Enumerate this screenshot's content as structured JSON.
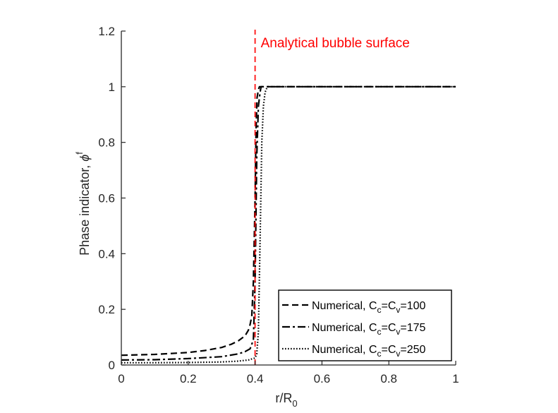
{
  "chart_data": {
    "type": "line",
    "xlabel": {
      "main": "r/R",
      "sub": "0"
    },
    "ylabel": {
      "main": "Phase indicator, ",
      "symbol": "ϕ",
      "sup": "f"
    },
    "xlim": [
      0,
      1
    ],
    "ylim": [
      0,
      1.2
    ],
    "xticks": [
      0,
      0.2,
      0.4,
      0.6,
      0.8,
      1
    ],
    "xtick_labels": [
      "0",
      "0.2",
      "0.4",
      "0.6",
      "0.8",
      "1"
    ],
    "yticks": [
      0,
      0.2,
      0.4,
      0.6,
      0.8,
      1,
      1.2
    ],
    "ytick_labels": [
      "0",
      "0.2",
      "0.4",
      "0.6",
      "0.8",
      "1",
      "1.2"
    ],
    "grid": false,
    "legend_position": "bottom-right",
    "annotation": {
      "text": "Analytical bubble surface",
      "x": 0.4,
      "color": "#ff0000",
      "line_style": "dashed"
    },
    "series": [
      {
        "name": "Numerical, C_c=C_v=100",
        "label_parts": {
          "pre": "Numerical, C",
          "s1": "c",
          "mid": "=C",
          "s2": "v",
          "post": "=100"
        },
        "dash": "dashed",
        "x": [
          0,
          0.1,
          0.2,
          0.25,
          0.3,
          0.33,
          0.35,
          0.37,
          0.38,
          0.385,
          0.39,
          0.395,
          0.4,
          0.403,
          0.406,
          0.41,
          0.413,
          1
        ],
        "y": [
          0.035,
          0.038,
          0.045,
          0.052,
          0.063,
          0.075,
          0.087,
          0.105,
          0.125,
          0.145,
          0.175,
          0.3,
          0.6,
          0.85,
          0.96,
          0.99,
          1.0,
          1.0
        ]
      },
      {
        "name": "Numerical, C_c=C_v=175",
        "label_parts": {
          "pre": "Numerical, C",
          "s1": "c",
          "mid": "=C",
          "s2": "v",
          "post": "=175"
        },
        "dash": "dashdot",
        "x": [
          0,
          0.1,
          0.2,
          0.3,
          0.35,
          0.37,
          0.385,
          0.395,
          0.4,
          0.405,
          0.41,
          0.415,
          0.418,
          0.422,
          1
        ],
        "y": [
          0.018,
          0.019,
          0.023,
          0.03,
          0.04,
          0.048,
          0.058,
          0.09,
          0.3,
          0.75,
          0.93,
          0.98,
          1.0,
          1.0,
          1.0
        ]
      },
      {
        "name": "Numerical, C_c=C_v=250",
        "label_parts": {
          "pre": "Numerical, C",
          "s1": "c",
          "mid": "=C",
          "s2": "v",
          "post": "=250"
        },
        "dash": "dotted",
        "x": [
          0,
          0.1,
          0.2,
          0.3,
          0.35,
          0.38,
          0.4,
          0.405,
          0.41,
          0.415,
          0.42,
          0.425,
          0.43,
          0.435,
          0.44,
          1
        ],
        "y": [
          0.008,
          0.008,
          0.009,
          0.011,
          0.014,
          0.018,
          0.025,
          0.04,
          0.12,
          0.45,
          0.8,
          0.93,
          0.98,
          0.995,
          1.0,
          1.0
        ]
      }
    ]
  }
}
